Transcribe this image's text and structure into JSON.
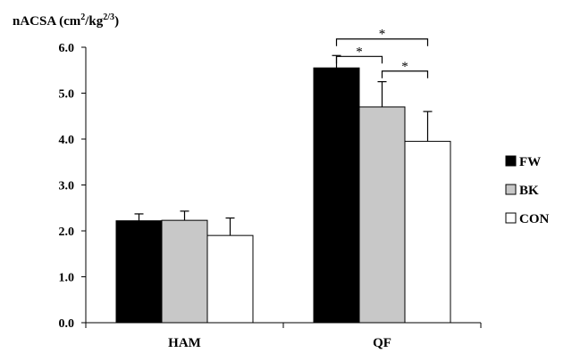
{
  "chart_data": {
    "type": "bar",
    "ylabel": "nACSA (cm²/kg²/³)",
    "ylabel_parts": {
      "base": "nACSA (cm",
      "exp1": "2",
      "mid": "/kg",
      "exp2": "2/3",
      "end": ")"
    },
    "ylim": [
      0,
      6
    ],
    "yticks": [
      "0.0",
      "1.0",
      "2.0",
      "3.0",
      "4.0",
      "5.0",
      "6.0"
    ],
    "categories": [
      "HAM",
      "QF"
    ],
    "series": [
      {
        "name": "FW",
        "color": "#000000",
        "values": [
          2.22,
          5.55
        ],
        "errors": [
          0.15,
          0.27
        ]
      },
      {
        "name": "BK",
        "color": "#c8c8c8",
        "values": [
          2.23,
          4.7
        ],
        "errors": [
          0.2,
          0.55
        ]
      },
      {
        "name": "CON",
        "color": "#ffffff",
        "values": [
          1.9,
          3.95
        ],
        "errors": [
          0.38,
          0.65
        ]
      }
    ],
    "legend_position": "right",
    "significance": [
      {
        "category": "QF",
        "from": "FW",
        "to": "BK",
        "level": 5.8,
        "label": "*"
      },
      {
        "category": "QF",
        "from": "FW",
        "to": "CON",
        "level": 6.18,
        "label": "*"
      },
      {
        "category": "QF",
        "from": "BK",
        "to": "CON",
        "level": 5.48,
        "label": "*"
      }
    ],
    "grid": false
  }
}
